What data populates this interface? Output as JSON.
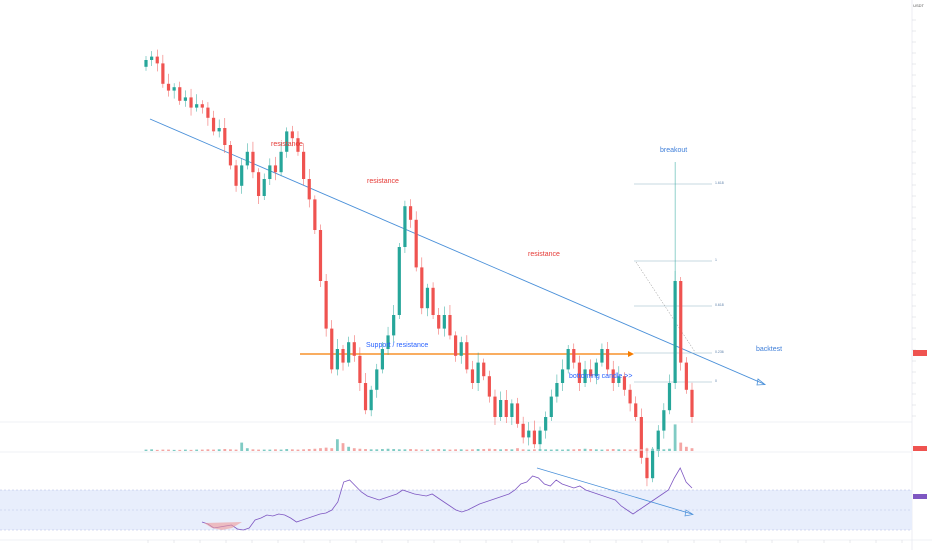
{
  "header": {
    "title": "",
    "ticker": "USDT"
  },
  "annotations": {
    "resistance_1": "resistance",
    "resistance_2": "resistance",
    "resistance_3": "resistance",
    "breakout": "breakout",
    "support": "Support / resistance",
    "bottoming": "bottoming candle >>",
    "backtest": "backtest"
  },
  "fib_levels": {
    "l1": "1.618",
    "l2": "1",
    "l3": "0.618",
    "l4": "0.236",
    "l5": "0"
  },
  "colors": {
    "up": "#26a69a",
    "down": "#ef5350",
    "trendline": "#4a90d9",
    "support": "#f57c00",
    "rsi": "#7e57c2",
    "rsi_band": "#e8eefc"
  },
  "chart_data": {
    "type": "candlestick",
    "title": "",
    "price_candles": [
      [
        0.43,
        0.45
      ],
      [
        0.45,
        0.46
      ],
      [
        0.46,
        0.44
      ],
      [
        0.44,
        0.38
      ],
      [
        0.38,
        0.36
      ],
      [
        0.36,
        0.37
      ],
      [
        0.37,
        0.33
      ],
      [
        0.33,
        0.34
      ],
      [
        0.34,
        0.31
      ],
      [
        0.31,
        0.32
      ],
      [
        0.32,
        0.31
      ],
      [
        0.31,
        0.28
      ],
      [
        0.28,
        0.24
      ],
      [
        0.24,
        0.25
      ],
      [
        0.25,
        0.2
      ],
      [
        0.2,
        0.14
      ],
      [
        0.14,
        0.08
      ],
      [
        0.08,
        0.14
      ],
      [
        0.14,
        0.18
      ],
      [
        0.18,
        0.12
      ],
      [
        0.12,
        0.05
      ],
      [
        0.05,
        0.1
      ],
      [
        0.1,
        0.14
      ],
      [
        0.14,
        0.12
      ],
      [
        0.12,
        0.18
      ],
      [
        0.18,
        0.24
      ],
      [
        0.24,
        0.22
      ],
      [
        0.22,
        0.18
      ],
      [
        0.18,
        0.1
      ],
      [
        0.1,
        0.04
      ],
      [
        0.04,
        -0.05
      ],
      [
        -0.05,
        -0.2
      ],
      [
        -0.2,
        -0.34
      ],
      [
        -0.34,
        -0.46
      ],
      [
        -0.46,
        -0.4
      ],
      [
        -0.4,
        -0.44
      ],
      [
        -0.44,
        -0.38
      ],
      [
        -0.38,
        -0.42
      ],
      [
        -0.42,
        -0.5
      ],
      [
        -0.5,
        -0.58
      ],
      [
        -0.58,
        -0.52
      ],
      [
        -0.52,
        -0.46
      ],
      [
        -0.46,
        -0.4
      ],
      [
        -0.4,
        -0.36
      ],
      [
        -0.36,
        -0.3
      ],
      [
        -0.3,
        -0.1
      ],
      [
        -0.1,
        0.02
      ],
      [
        0.02,
        -0.02
      ],
      [
        -0.02,
        -0.16
      ],
      [
        -0.16,
        -0.28
      ],
      [
        -0.28,
        -0.22
      ],
      [
        -0.22,
        -0.3
      ],
      [
        -0.3,
        -0.34
      ],
      [
        -0.34,
        -0.3
      ],
      [
        -0.3,
        -0.36
      ],
      [
        -0.36,
        -0.42
      ],
      [
        -0.42,
        -0.38
      ],
      [
        -0.38,
        -0.46
      ],
      [
        -0.46,
        -0.5
      ],
      [
        -0.5,
        -0.44
      ],
      [
        -0.44,
        -0.48
      ],
      [
        -0.48,
        -0.54
      ],
      [
        -0.54,
        -0.6
      ],
      [
        -0.6,
        -0.55
      ],
      [
        -0.55,
        -0.6
      ],
      [
        -0.6,
        -0.56
      ],
      [
        -0.56,
        -0.62
      ],
      [
        -0.62,
        -0.66
      ],
      [
        -0.66,
        -0.64
      ],
      [
        -0.64,
        -0.68
      ],
      [
        -0.68,
        -0.64
      ],
      [
        -0.64,
        -0.6
      ],
      [
        -0.6,
        -0.54
      ],
      [
        -0.54,
        -0.5
      ],
      [
        -0.5,
        -0.46
      ],
      [
        -0.46,
        -0.4
      ],
      [
        -0.4,
        -0.44
      ],
      [
        -0.44,
        -0.5
      ],
      [
        -0.5,
        -0.46
      ],
      [
        -0.46,
        -0.48
      ],
      [
        -0.48,
        -0.44
      ],
      [
        -0.44,
        -0.4
      ],
      [
        -0.4,
        -0.46
      ],
      [
        -0.46,
        -0.5
      ],
      [
        -0.5,
        -0.48
      ],
      [
        -0.48,
        -0.52
      ],
      [
        -0.52,
        -0.56
      ],
      [
        -0.56,
        -0.6
      ],
      [
        -0.6,
        -0.72
      ],
      [
        -0.72,
        -0.78
      ],
      [
        -0.78,
        -0.7
      ],
      [
        -0.7,
        -0.64
      ],
      [
        -0.64,
        -0.58
      ],
      [
        -0.58,
        -0.5
      ],
      [
        -0.5,
        -0.2
      ],
      [
        -0.2,
        -0.44
      ],
      [
        -0.44,
        -0.52
      ],
      [
        -0.52,
        -0.6
      ]
    ],
    "volume": [
      0.05,
      0.06,
      0.04,
      0.05,
      0.05,
      0.04,
      0.04,
      0.05,
      0.04,
      0.05,
      0.05,
      0.06,
      0.05,
      0.06,
      0.07,
      0.06,
      0.05,
      0.3,
      0.1,
      0.06,
      0.05,
      0.05,
      0.05,
      0.06,
      0.05,
      0.07,
      0.06,
      0.05,
      0.06,
      0.07,
      0.08,
      0.1,
      0.12,
      0.1,
      0.42,
      0.28,
      0.15,
      0.1,
      0.08,
      0.07,
      0.06,
      0.06,
      0.07,
      0.08,
      0.07,
      0.06,
      0.06,
      0.07,
      0.06,
      0.05,
      0.05,
      0.06,
      0.07,
      0.06,
      0.05,
      0.06,
      0.06,
      0.05,
      0.06,
      0.07,
      0.07,
      0.08,
      0.07,
      0.06,
      0.07,
      0.06,
      0.1,
      0.06,
      0.05,
      0.06,
      0.07,
      0.06,
      0.05,
      0.06,
      0.05,
      0.06,
      0.06,
      0.07,
      0.08,
      0.07,
      0.06,
      0.05,
      0.06,
      0.07,
      0.06,
      0.06,
      0.05,
      0.06,
      0.07,
      0.09,
      0.08,
      0.07,
      0.06,
      0.08,
      0.95,
      0.3,
      0.15,
      0.1
    ],
    "rsi": [
      38,
      36,
      32,
      33,
      34,
      35,
      31,
      30,
      32,
      40,
      42,
      45,
      44,
      46,
      45,
      42,
      38,
      40,
      42,
      44,
      46,
      47,
      50,
      58,
      78,
      80,
      74,
      68,
      64,
      62,
      60,
      62,
      64,
      66,
      70,
      68,
      66,
      65,
      64,
      66,
      62,
      58,
      54,
      50,
      48,
      50,
      53,
      56,
      58,
      60,
      62,
      64,
      66,
      70,
      76,
      78,
      84,
      82,
      76,
      74,
      80,
      76,
      74,
      72,
      74,
      70,
      68,
      66,
      64,
      62,
      60,
      54,
      50,
      46,
      50,
      54,
      58,
      62,
      66,
      70,
      82,
      92,
      78,
      72
    ]
  }
}
